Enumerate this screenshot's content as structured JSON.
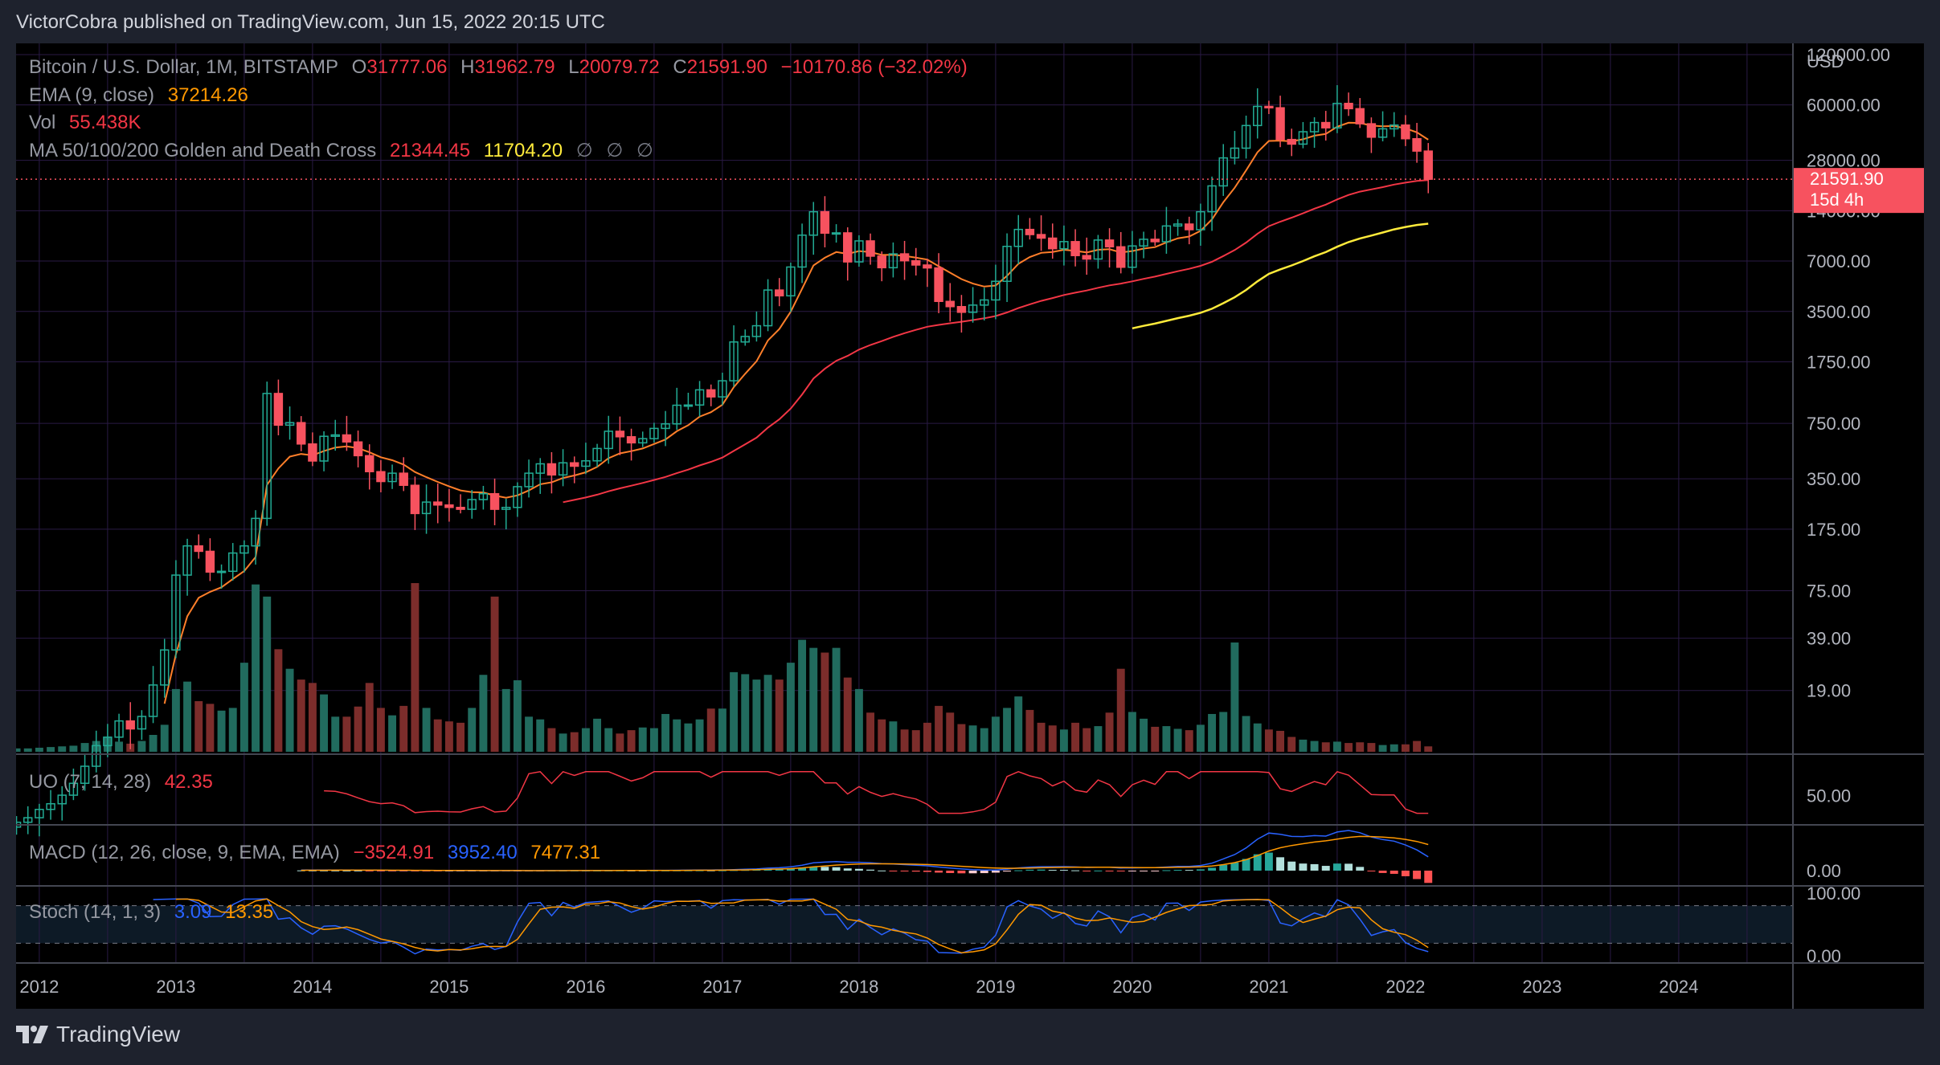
{
  "header": {
    "publisher": "VictorCobra published on TradingView.com, Jun 15, 2022 20:15 UTC"
  },
  "footer": {
    "brand": "TradingView"
  },
  "colors": {
    "up": "#22ab94",
    "down": "#f7525f",
    "upVol": "#216b5e",
    "downVol": "#7c2d2b",
    "ema": "#ff7f2a",
    "ma50": "#f23645",
    "ma100": "#ffeb3b",
    "macd": "#2962ff",
    "signal": "#ff9800",
    "uo": "#f23645",
    "stochK": "#2962ff",
    "stochD": "#ff9800",
    "grid": "#2a1a45"
  },
  "legend": {
    "main": {
      "symbol": "Bitcoin / U.S. Dollar, 1M, BITSTAMP",
      "o_label": "O",
      "o": "31777.06",
      "h_label": "H",
      "h": "31962.79",
      "l_label": "L",
      "l": "20079.72",
      "c_label": "C",
      "c": "21591.90",
      "change": "−10170.86 (−32.02%)"
    },
    "ema": {
      "label": "EMA (9, close)",
      "value": "37214.26"
    },
    "vol": {
      "label": "Vol",
      "value": "55.438K"
    },
    "ma": {
      "label": "MA 50/100/200 Golden and Death Cross",
      "v1": "21344.45",
      "v2": "11704.20",
      "v3": "∅",
      "v4": "∅",
      "v5": "∅"
    },
    "uo": {
      "label": "UO (7, 14, 28)",
      "value": "42.35"
    },
    "macd": {
      "label": "MACD (12, 26, close, 9, EMA, EMA)",
      "hist": "−3524.91",
      "macd": "3952.40",
      "signal": "7477.31"
    },
    "stoch": {
      "label": "Stoch (14, 1, 3)",
      "k": "3.09",
      "d": "13.35"
    }
  },
  "price_axis": {
    "currency": "USD",
    "ticks": [
      "120000.00",
      "60000.00",
      "28000.00",
      "14000.00",
      "7000.00",
      "3500.00",
      "1750.00",
      "750.00",
      "350.00",
      "175.00",
      "75.00",
      "39.00",
      "19.00"
    ],
    "last_price": "21591.90",
    "countdown": "15d 4h"
  },
  "uo_axis": {
    "ticks": [
      "50.00"
    ]
  },
  "macd_axis": {
    "ticks": [
      "0.00"
    ]
  },
  "stoch_axis": {
    "ticks": [
      "100.00",
      "0.00"
    ]
  },
  "time_axis": {
    "labels": [
      "2012",
      "2013",
      "2014",
      "2015",
      "2016",
      "2017",
      "2018",
      "2019",
      "2020",
      "2021",
      "2022",
      "2023",
      "2024"
    ]
  },
  "chart_data": {
    "type": "candlestick",
    "title": "Bitcoin / U.S. Dollar, 1M, BITSTAMP",
    "scale": "log",
    "y_range": [
      8,
      140000
    ],
    "x_range": [
      2011.83,
      2024.83
    ],
    "start": 2011.75,
    "step_months": 1,
    "closes": [
      2.9,
      3.1,
      3.3,
      3.7,
      4.0,
      4.5,
      5.3,
      6.7,
      8.9,
      10.0,
      12.5,
      11.2,
      13.3,
      20.5,
      33.2,
      93.0,
      139.0,
      129.0,
      97.0,
      98.0,
      126.0,
      139.0,
      203.0,
      1132.0,
      732.0,
      758.0,
      565.0,
      447.0,
      628.0,
      640.0,
      581.0,
      481.0,
      386.0,
      337.0,
      378.0,
      320.0,
      217.0,
      254.0,
      244.0,
      236.0,
      230.0,
      263.0,
      285.0,
      230.0,
      236.0,
      314.0,
      378.0,
      430.0,
      369.0,
      436.0,
      416.0,
      448.0,
      531.0,
      673.0,
      624.0,
      574.0,
      608.0,
      700.0,
      745.0,
      963.0,
      966.0,
      1190.0,
      1080.0,
      1348.0,
      2300.0,
      2480.0,
      2875.0,
      4700.0,
      4340.0,
      6450.0,
      10000.0,
      13800.0,
      10280.0,
      10320.0,
      6920.0,
      9240.0,
      7490.0,
      6390.0,
      7730.0,
      7030.0,
      6630.0,
      6370.0,
      4020.0,
      3740.0,
      3460.0,
      3820.0,
      4100.0,
      5300.0,
      8570.0,
      10820.0,
      10080.0,
      9600.0,
      8300.0,
      9150.0,
      7550.0,
      7200.0,
      9350.0,
      8520.0,
      6430.0,
      8620.0,
      9450.0,
      9140.0,
      11350.0,
      11650.0,
      10780.0,
      13800.0,
      19700.0,
      28950.0,
      33100.0,
      45200.0,
      58800.0,
      57700.0,
      37300.0,
      35000.0,
      41500.0,
      47100.0,
      43800.0,
      61300.0,
      57000.0,
      46300.0,
      38500.0,
      43200.0,
      45500.0,
      37700.0,
      31800.0,
      21591.9
    ],
    "volume_unit": "relative",
    "volumes": [
      0.4,
      0.5,
      0.5,
      0.6,
      0.7,
      0.8,
      0.9,
      1.3,
      1.6,
      2.2,
      1.5,
      1.2,
      1.6,
      2.5,
      4.0,
      9.3,
      10.4,
      7.5,
      7.1,
      6.1,
      6.5,
      13.2,
      24.8,
      23.0,
      15.2,
      12.3,
      10.7,
      10.2,
      8.5,
      5.2,
      5.2,
      6.7,
      10.2,
      6.5,
      5.4,
      6.8,
      25.0,
      6.5,
      4.8,
      4.5,
      4.3,
      6.5,
      11.4,
      23.0,
      9.3,
      10.6,
      5.2,
      4.8,
      3.5,
      2.7,
      2.9,
      3.5,
      4.9,
      3.5,
      2.7,
      3.2,
      3.6,
      3.5,
      5.6,
      4.8,
      4.2,
      4.8,
      6.4,
      6.4,
      11.8,
      11.5,
      10.7,
      11.4,
      10.7,
      13.2,
      16.6,
      15.4,
      14.7,
      15.4,
      11.0,
      9.3,
      5.8,
      4.8,
      4.5,
      3.3,
      3.2,
      4.3,
      6.8,
      5.8,
      4.1,
      3.9,
      3.5,
      5.2,
      6.5,
      8.2,
      6.2,
      4.3,
      3.9,
      3.3,
      4.3,
      3.5,
      3.8,
      5.8,
      12.3,
      5.9,
      4.9,
      3.7,
      3.8,
      3.4,
      3.2,
      4.0,
      5.6,
      5.9,
      16.2,
      5.3,
      4.2,
      3.3,
      3.1,
      2.2,
      1.8,
      1.6,
      1.4,
      1.5,
      1.3,
      1.4,
      1.3,
      1.0,
      1.1,
      1.1,
      1.6,
      0.8
    ]
  }
}
